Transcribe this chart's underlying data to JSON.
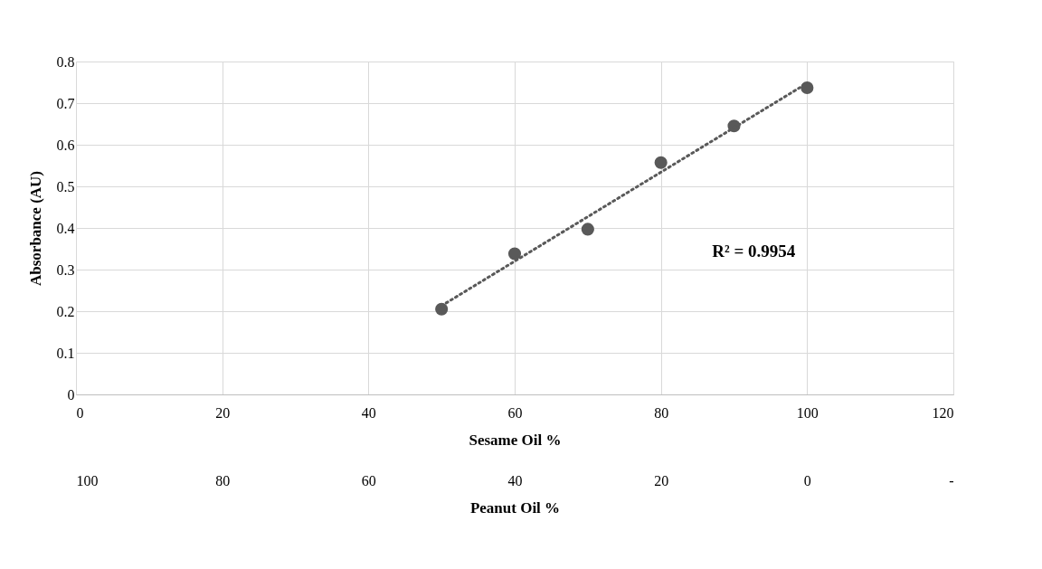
{
  "chart_data": {
    "type": "scatter",
    "xlabel": "Sesame Oil %",
    "ylabel": "Absorbance (AU)",
    "x2label": "Peanut Oil %",
    "x": [
      50,
      60,
      70,
      80,
      90,
      100
    ],
    "series": [
      {
        "type": "scatter",
        "color": "#595959",
        "values": [
          0.205,
          0.338,
          0.397,
          0.557,
          0.645,
          0.737
        ],
        "marker": "circle"
      },
      {
        "type": "line",
        "color": "#595959",
        "x": [
          50,
          100
        ],
        "values": [
          0.213,
          0.748
        ],
        "line_style": "dotted",
        "marker": "none"
      }
    ],
    "xlim": [
      0,
      120
    ],
    "xticks": [
      0,
      20,
      40,
      60,
      80,
      100,
      120
    ],
    "x2lim": [
      100,
      -20
    ],
    "x2ticks": [
      100,
      80,
      60,
      40,
      20,
      0,
      {
        "value": -20,
        "label": "-"
      }
    ],
    "ylim": [
      0,
      0.8
    ],
    "yticks": [
      0,
      0.1,
      0.2,
      0.3,
      0.4,
      0.5,
      0.6,
      0.7,
      0.8
    ],
    "grid": true,
    "annotations": [
      "R² = 0.9954"
    ]
  }
}
